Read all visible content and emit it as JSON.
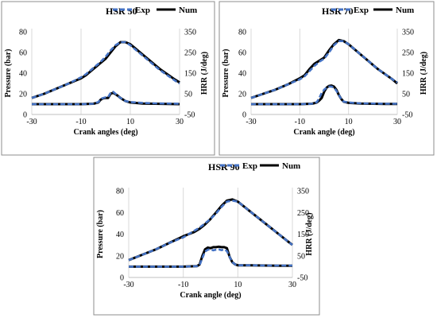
{
  "chart_data": [
    {
      "type": "line",
      "title": "HSR 50",
      "xlabel": "Crank angles (deg)",
      "ylabel": "Pressure (bar)",
      "y2label": "HRR (J/deg)",
      "xlim": [
        -30,
        30
      ],
      "ylim": [
        0,
        80
      ],
      "y2lim": [
        -50,
        350
      ],
      "xticks": [
        "-30",
        "-10",
        "10",
        "30"
      ],
      "yticks": [
        "0",
        "20",
        "40",
        "60",
        "80"
      ],
      "y2ticks": [
        "-50",
        "50",
        "150",
        "250",
        "350"
      ],
      "legend": [
        "Exp",
        "Num"
      ],
      "legend_position": "top",
      "grid": "vertical",
      "series": [
        {
          "name": "Exp",
          "quantity": "pressure",
          "style": "dashed",
          "color": "#4472C4",
          "x": [
            -30,
            -25,
            -20,
            -15,
            -10,
            -8,
            -6,
            -4,
            -2,
            0,
            2,
            4,
            6,
            8,
            10,
            12,
            15,
            18,
            20,
            22,
            25,
            28,
            30
          ],
          "y": [
            16,
            20,
            25,
            30,
            36,
            39,
            43,
            47,
            51,
            56,
            62,
            67,
            70,
            70,
            67,
            63,
            57,
            51,
            47,
            43,
            38,
            33,
            30
          ]
        },
        {
          "name": "Num",
          "quantity": "pressure",
          "style": "solid",
          "color": "#000000",
          "x": [
            -30,
            -25,
            -20,
            -15,
            -10,
            -8,
            -6,
            -4,
            -2,
            0,
            2,
            4,
            6,
            8,
            10,
            12,
            15,
            18,
            20,
            22,
            25,
            28,
            30
          ],
          "y": [
            16,
            20,
            25,
            30,
            35,
            38,
            42,
            46,
            50,
            54,
            60,
            66,
            70,
            70,
            68,
            64,
            58,
            52,
            48,
            44,
            39,
            34,
            31
          ]
        },
        {
          "name": "Exp",
          "quantity": "hrr",
          "style": "dashed",
          "color": "#4472C4",
          "x": [
            -30,
            -10,
            -5,
            -3,
            -2,
            -1,
            0,
            1,
            2,
            3,
            4,
            5,
            6,
            8,
            10,
            15,
            20,
            25,
            30
          ],
          "y": [
            0,
            0,
            2,
            10,
            25,
            30,
            33,
            34,
            55,
            60,
            50,
            40,
            30,
            15,
            10,
            6,
            4,
            3,
            2
          ]
        },
        {
          "name": "Num",
          "quantity": "hrr",
          "style": "solid",
          "color": "#000000",
          "x": [
            -30,
            -10,
            -5,
            -3,
            -2,
            -1,
            0,
            1,
            2,
            3,
            4,
            5,
            6,
            8,
            10,
            15,
            20,
            25,
            30
          ],
          "y": [
            0,
            0,
            2,
            8,
            22,
            28,
            30,
            30,
            50,
            55,
            48,
            40,
            30,
            15,
            8,
            3,
            2,
            1,
            0
          ]
        }
      ]
    },
    {
      "type": "line",
      "title": "HSR 70",
      "xlabel": "Crank angle (deg)",
      "ylabel": "Pressure (bar)",
      "y2label": "HRR (J/deg)",
      "xlim": [
        -30,
        30
      ],
      "ylim": [
        0,
        80
      ],
      "y2lim": [
        -50,
        350
      ],
      "xticks": [
        "-30",
        "-10",
        "10",
        "30"
      ],
      "yticks": [
        "0",
        "20",
        "40",
        "60",
        "80"
      ],
      "y2ticks": [
        "-50",
        "50",
        "150",
        "250",
        "350"
      ],
      "legend": [
        "Exp",
        "Num"
      ],
      "legend_position": "top",
      "grid": "vertical",
      "series": [
        {
          "name": "Exp",
          "quantity": "pressure",
          "style": "dashed",
          "color": "#4472C4",
          "x": [
            -30,
            -25,
            -20,
            -15,
            -10,
            -8,
            -6,
            -4,
            -2,
            0,
            2,
            4,
            6,
            8,
            10,
            12,
            15,
            18,
            20,
            22,
            25,
            28,
            30
          ],
          "y": [
            16,
            20,
            24,
            29,
            34,
            37,
            42,
            47,
            51,
            54,
            60,
            67,
            71,
            71,
            68,
            64,
            58,
            52,
            48,
            44,
            39,
            34,
            31
          ]
        },
        {
          "name": "Num",
          "quantity": "pressure",
          "style": "solid",
          "color": "#000000",
          "x": [
            -30,
            -25,
            -20,
            -15,
            -10,
            -8,
            -6,
            -4,
            -2,
            0,
            2,
            4,
            6,
            8,
            10,
            12,
            15,
            18,
            20,
            22,
            25,
            28,
            30
          ],
          "y": [
            16,
            20,
            24,
            29,
            35,
            38,
            44,
            49,
            52,
            55,
            62,
            68,
            72,
            71,
            68,
            64,
            58,
            52,
            48,
            44,
            39,
            34,
            30
          ]
        },
        {
          "name": "Exp",
          "quantity": "hrr",
          "style": "dashed",
          "color": "#4472C4",
          "x": [
            -30,
            -10,
            -5,
            -3,
            -2,
            -1,
            0,
            1,
            2,
            3,
            4,
            5,
            6,
            7,
            8,
            10,
            15,
            20,
            25,
            30
          ],
          "y": [
            0,
            0,
            2,
            10,
            30,
            55,
            70,
            80,
            85,
            85,
            80,
            65,
            45,
            25,
            12,
            8,
            4,
            3,
            2,
            2
          ]
        },
        {
          "name": "Num",
          "quantity": "hrr",
          "style": "solid",
          "color": "#000000",
          "x": [
            -30,
            -10,
            -5,
            -3,
            -2,
            -1,
            0,
            1,
            2,
            3,
            4,
            5,
            6,
            7,
            8,
            10,
            15,
            20,
            25,
            30
          ],
          "y": [
            0,
            0,
            2,
            8,
            18,
            30,
            60,
            80,
            88,
            90,
            85,
            70,
            45,
            25,
            12,
            6,
            3,
            2,
            1,
            1
          ]
        }
      ]
    },
    {
      "type": "line",
      "title": "HSR 90",
      "xlabel": "Crank angle (deg)",
      "ylabel": "Pressure (bar)",
      "y2label": "HRR (J/deg)",
      "xlim": [
        -30,
        30
      ],
      "ylim": [
        0,
        80
      ],
      "y2lim": [
        -50,
        350
      ],
      "xticks": [
        "-30",
        "-10",
        "10",
        "30"
      ],
      "yticks": [
        "0",
        "20",
        "40",
        "60",
        "80"
      ],
      "y2ticks": [
        "-50",
        "50",
        "150",
        "250",
        "350"
      ],
      "legend": [
        "Exp",
        "Num"
      ],
      "legend_position": "top",
      "grid": "vertical",
      "series": [
        {
          "name": "Exp",
          "quantity": "pressure",
          "style": "dashed",
          "color": "#4472C4",
          "x": [
            -30,
            -25,
            -20,
            -15,
            -10,
            -8,
            -6,
            -4,
            -2,
            0,
            2,
            4,
            6,
            8,
            10,
            12,
            15,
            18,
            20,
            22,
            25,
            28,
            30
          ],
          "y": [
            16,
            21,
            26,
            32,
            37,
            40,
            43,
            46,
            50,
            54,
            59,
            65,
            70,
            71,
            70,
            66,
            60,
            54,
            50,
            46,
            40,
            34,
            30
          ]
        },
        {
          "name": "Num",
          "quantity": "pressure",
          "style": "solid",
          "color": "#000000",
          "x": [
            -30,
            -25,
            -20,
            -15,
            -10,
            -8,
            -6,
            -4,
            -2,
            0,
            2,
            4,
            6,
            8,
            10,
            12,
            15,
            18,
            20,
            22,
            25,
            28,
            30
          ],
          "y": [
            16,
            21,
            26,
            32,
            38,
            40,
            42,
            45,
            49,
            54,
            60,
            66,
            71,
            72,
            70,
            66,
            60,
            54,
            50,
            46,
            40,
            34,
            30
          ]
        },
        {
          "name": "Exp",
          "quantity": "hrr",
          "style": "dashed",
          "color": "#4472C4",
          "x": [
            -30,
            -10,
            -5,
            -4,
            -3,
            -2,
            -1,
            0,
            1,
            2,
            3,
            4,
            5,
            6,
            7,
            8,
            9,
            10,
            15,
            20,
            25,
            30
          ],
          "y": [
            0,
            0,
            2,
            8,
            40,
            70,
            78,
            80,
            75,
            78,
            80,
            76,
            80,
            72,
            45,
            20,
            10,
            6,
            6,
            5,
            5,
            5
          ]
        },
        {
          "name": "Num",
          "quantity": "hrr",
          "style": "solid",
          "color": "#000000",
          "x": [
            -30,
            -10,
            -5,
            -4,
            -3,
            -2,
            -1,
            0,
            1,
            2,
            3,
            4,
            5,
            6,
            7,
            8,
            9,
            10,
            15,
            20,
            25,
            30
          ],
          "y": [
            0,
            0,
            2,
            10,
            50,
            80,
            88,
            85,
            90,
            90,
            92,
            90,
            90,
            85,
            45,
            20,
            10,
            6,
            6,
            5,
            4,
            4
          ]
        }
      ]
    }
  ]
}
